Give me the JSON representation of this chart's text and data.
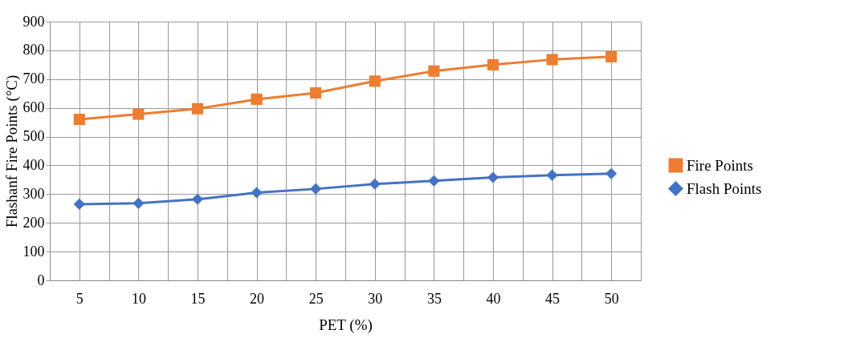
{
  "chart_data": {
    "type": "line",
    "xlabel": "PET (%)",
    "ylabel": "Flashanf Fire Points (°C)",
    "categories": [
      "5",
      "10",
      "15",
      "20",
      "25",
      "30",
      "35",
      "40",
      "45",
      "50"
    ],
    "series": [
      {
        "name": "Fire Points",
        "color": "#ed7d31",
        "marker": "square",
        "values": [
          560,
          578,
          597,
          630,
          652,
          693,
          728,
          750,
          768,
          778
        ]
      },
      {
        "name": "Flash Points",
        "color": "#4472c4",
        "marker": "diamond",
        "values": [
          265,
          268,
          282,
          305,
          318,
          335,
          346,
          358,
          366,
          371
        ]
      }
    ],
    "ylim": [
      0,
      900
    ],
    "yticks": [
      0,
      100,
      200,
      300,
      400,
      500,
      600,
      700,
      800,
      900
    ],
    "grid": true,
    "legend": "right"
  }
}
